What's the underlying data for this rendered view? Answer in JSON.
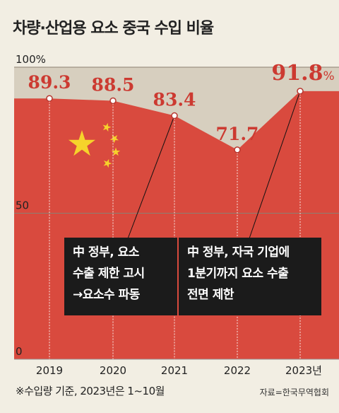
{
  "title": "차량·산업용 요소 중국 수입 비율",
  "chart_data": {
    "type": "area",
    "categories": [
      "2019",
      "2020",
      "2021",
      "2022",
      "2023년"
    ],
    "values": [
      89.3,
      88.5,
      83.4,
      71.7,
      91.8
    ],
    "value_labels": [
      "89.3",
      "88.5",
      "83.4",
      "71.7",
      "91.8"
    ],
    "last_value_unit": "%",
    "ylim": [
      0,
      100
    ],
    "y_ticks": [
      {
        "value": 100,
        "label": "100%"
      },
      {
        "value": 50,
        "label": "50"
      },
      {
        "value": 0,
        "label": "0"
      }
    ],
    "grid": true,
    "annotations": [
      {
        "x": "2021",
        "lines": [
          "中 정부, 요소",
          "수출 제한 고시",
          "→요소수 파동"
        ]
      },
      {
        "x": "2023년",
        "lines": [
          "中 정부, 자국 기업에",
          "1분기까지 요소 수출",
          "전면 제한"
        ]
      }
    ],
    "fill_color": "#d94a3e",
    "remainder_color": "#d7cfbf",
    "label_color": "#cc3a31",
    "star_color": "#f6d32b"
  },
  "note": "※수입량 기준, 2023년은 1~10월",
  "source": "자료=한국무역협회"
}
